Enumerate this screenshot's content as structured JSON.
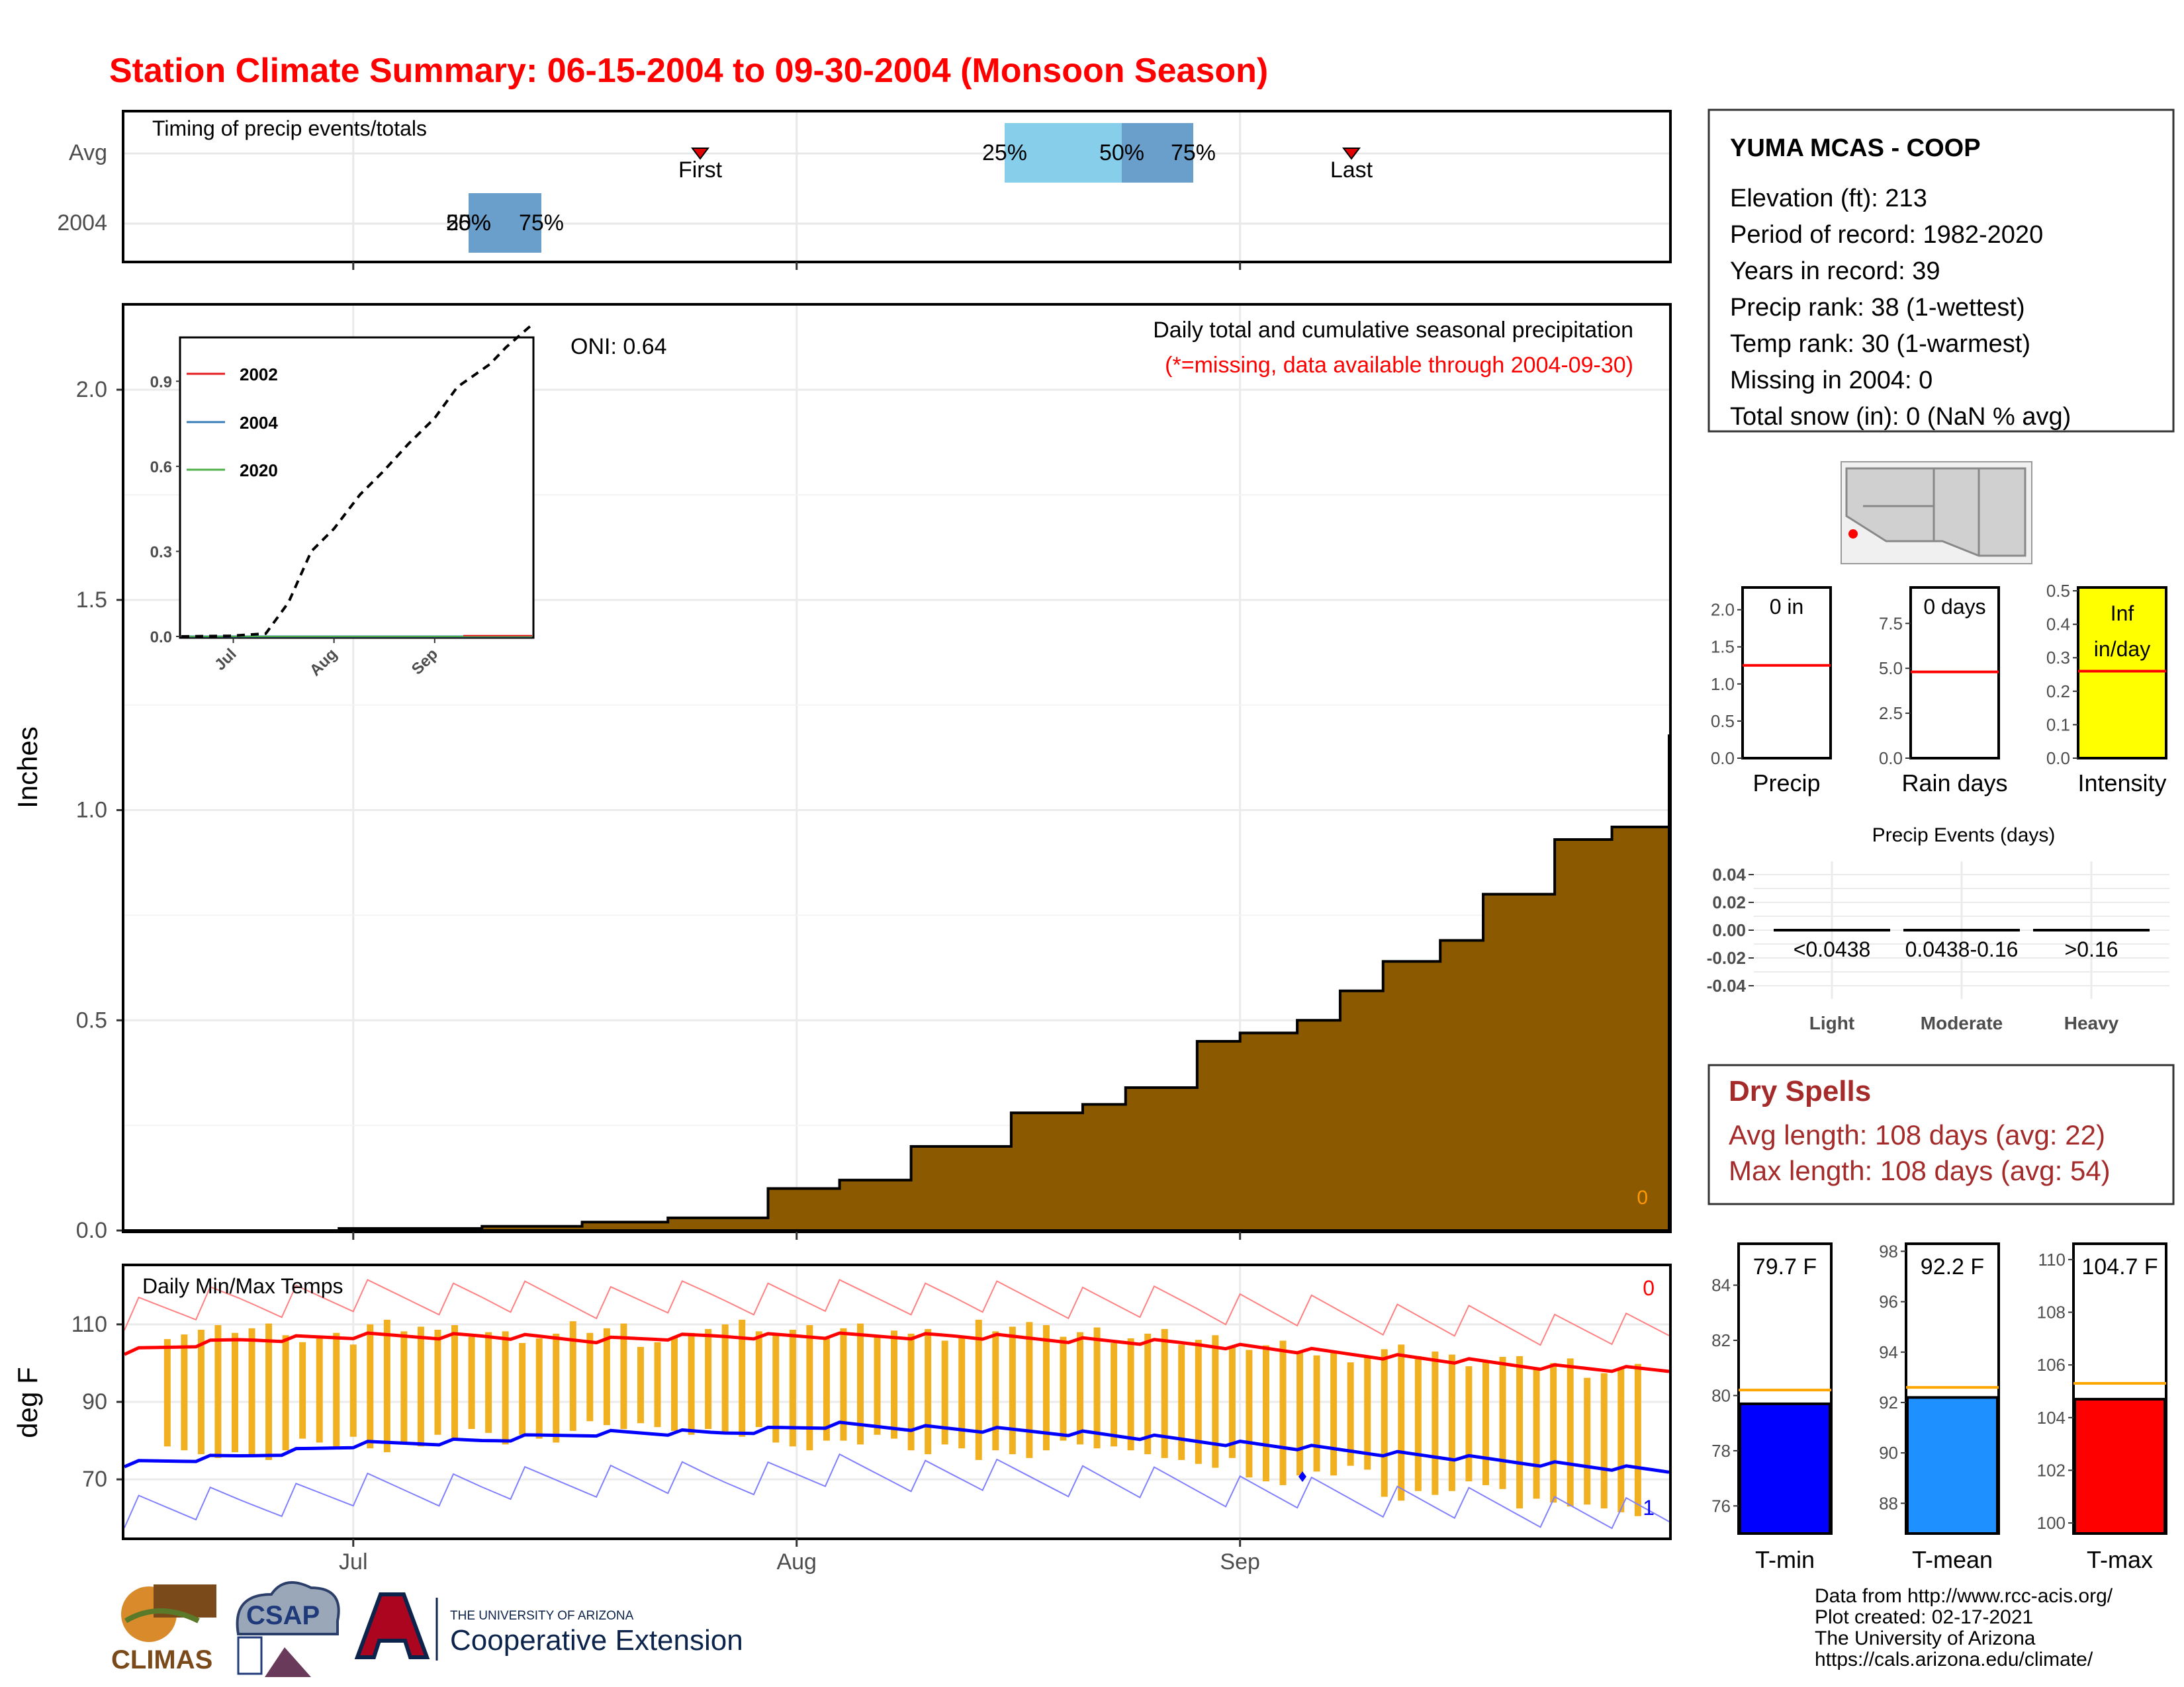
{
  "title": "Station Climate Summary: 06-15-2004 to 09-30-2004 (Monsoon Season)",
  "colors": {
    "title": "#ff0000",
    "precip_fill": "#8b5a00",
    "tmax": "#ff0000",
    "tmin": "#0000ff",
    "bar": "#f0b020",
    "intensity_fill": "#ffff00",
    "dry": "#a52a2a"
  },
  "x_months": [
    "Jul",
    "Aug",
    "Sep"
  ],
  "timing": {
    "title": "Timing of precip events/totals",
    "rows": [
      "Avg",
      "2004"
    ],
    "avg_pct_labels": [
      "25%",
      "50%",
      "75%"
    ],
    "first_label": "First",
    "last_label": "Last",
    "year_pct_labels": [
      "25%",
      "50%",
      "75%"
    ]
  },
  "chart_data": [
    {
      "type": "area",
      "name": "cumulative precipitation",
      "title": "Daily total and cumulative seasonal precipitation",
      "note": "(*=missing, data available through 2004-09-30)",
      "oni": "ONI: 0.64",
      "ylabel": "Inches",
      "ylim": [
        0,
        2.2
      ],
      "yticks": [
        "0.0",
        "0.5",
        "1.0",
        "1.5",
        "2.0"
      ],
      "x": [
        0,
        15,
        25,
        32,
        38,
        45,
        50,
        55,
        62,
        67,
        70,
        75,
        78,
        82,
        85,
        88,
        92,
        95,
        100,
        104,
        108
      ],
      "values": [
        0.0,
        0.005,
        0.01,
        0.02,
        0.03,
        0.1,
        0.12,
        0.2,
        0.28,
        0.3,
        0.34,
        0.45,
        0.47,
        0.5,
        0.57,
        0.64,
        0.69,
        0.8,
        0.93,
        0.96,
        1.18
      ],
      "corner_label": "0"
    },
    {
      "type": "line",
      "name": "inset cumulative by year",
      "legend": [
        "2002",
        "2004",
        "2020"
      ],
      "yticks": [
        "0.0",
        "0.3",
        "0.6",
        "0.9"
      ],
      "xticks": [
        "Jul",
        "Aug",
        "Sep"
      ],
      "ylim": [
        0,
        1.05
      ],
      "dashed_x": [
        0,
        15,
        26,
        33,
        40,
        47,
        55,
        62,
        70,
        78,
        85,
        90,
        95,
        100,
        108
      ],
      "dashed_values": [
        0.0,
        0.002,
        0.01,
        0.12,
        0.3,
        0.38,
        0.5,
        0.58,
        0.68,
        0.77,
        0.88,
        0.92,
        0.96,
        1.02,
        1.1
      ]
    },
    {
      "type": "line",
      "name": "daily temps",
      "title": "Daily Min/Max Temps",
      "ylabel": "deg F",
      "ylim": [
        55,
        125
      ],
      "yticks": [
        "70",
        "90",
        "110"
      ],
      "max_corner_label": "0",
      "min_corner_label": "1",
      "tmax_avg": [
        103,
        106,
        107,
        107,
        106,
        107,
        107,
        107,
        106,
        105,
        103,
        101,
        99,
        98
      ],
      "tmin_avg": [
        74,
        76,
        79,
        80,
        82,
        82,
        84,
        83,
        82,
        80,
        78,
        76,
        74,
        72
      ],
      "bars_max": [
        108,
        109,
        106,
        110,
        108,
        107,
        109,
        106,
        110,
        108,
        109,
        107,
        110,
        108,
        107,
        106,
        104,
        102,
        103,
        101,
        100,
        98
      ],
      "bars_min": [
        77,
        76,
        80,
        78,
        82,
        80,
        84,
        83,
        82,
        79,
        80,
        78,
        76,
        79,
        77,
        74,
        70,
        72,
        66,
        68,
        64,
        62
      ]
    },
    {
      "type": "bar",
      "name": "precip summary",
      "panels": [
        {
          "label": "Precip",
          "value_label": "0 in",
          "yticks": [
            "0.0",
            "0.5",
            "1.0",
            "1.5",
            "2.0"
          ],
          "avg": 1.25,
          "ylim": [
            0,
            2.3
          ],
          "value": 0
        },
        {
          "label": "Rain days",
          "value_label": "0 days",
          "yticks": [
            "0.0",
            "2.5",
            "5.0",
            "7.5"
          ],
          "avg": 4.8,
          "ylim": [
            0,
            9.5
          ],
          "value": 0
        },
        {
          "label": "Intensity",
          "value_label_1": "Inf",
          "value_label_2": "in/day",
          "yticks": [
            "0.0",
            "0.1",
            "0.2",
            "0.3",
            "0.4",
            "0.5"
          ],
          "avg": 0.26,
          "ylim": [
            0,
            0.51
          ],
          "value": 1
        }
      ]
    },
    {
      "type": "bar",
      "name": "precip events",
      "title": "Precip Events (days)",
      "categories": [
        "Light",
        "Moderate",
        "Heavy"
      ],
      "thresholds": [
        "<0.0438",
        "0.0438-0.16",
        ">0.16"
      ],
      "values": [
        0,
        0,
        0
      ],
      "yticks": [
        "0.04",
        "0.02",
        "0.00",
        "-0.02",
        "-0.04"
      ]
    },
    {
      "type": "bar",
      "name": "temperature summary",
      "panels": [
        {
          "label": "T-min",
          "value_label": "79.7 F",
          "value": 79.7,
          "avg": 80.2,
          "ylim": [
            75,
            85.5
          ],
          "yticks": [
            "76",
            "78",
            "80",
            "82",
            "84"
          ]
        },
        {
          "label": "T-mean",
          "value_label": "92.2 F",
          "value": 92.2,
          "avg": 92.6,
          "ylim": [
            86.8,
            98.3
          ],
          "yticks": [
            "88",
            "90",
            "92",
            "94",
            "96",
            "98"
          ]
        },
        {
          "label": "T-max",
          "value_label": "104.7 F",
          "value": 104.7,
          "avg": 105.3,
          "ylim": [
            99.6,
            110.6
          ],
          "yticks": [
            "100",
            "102",
            "104",
            "106",
            "108",
            "110"
          ]
        }
      ]
    }
  ],
  "station": {
    "name": "YUMA MCAS - COOP",
    "lines": [
      "Elevation (ft): 213",
      "Period of record: 1982-2020",
      "Years in record: 39",
      "Precip rank: 38 (1-wettest)",
      "Temp rank: 30 (1-warmest)",
      "Missing in 2004: 0",
      "Total snow (in): 0 (NaN % avg)"
    ]
  },
  "dry_spells": {
    "title": "Dry Spells",
    "avg": "Avg length: 108 days (avg: 22)",
    "max": "Max length: 108 days (avg: 54)"
  },
  "credits": [
    "Data from http://www.rcc-acis.org/",
    "Plot created: 02-17-2021",
    "The University of Arizona",
    "https://cals.arizona.edu/climate/"
  ],
  "logos": {
    "climas": "CLIMAS",
    "csap": "CSAP",
    "ua_small": "THE UNIVERSITY OF ARIZONA",
    "ua_big": "Cooperative Extension"
  }
}
